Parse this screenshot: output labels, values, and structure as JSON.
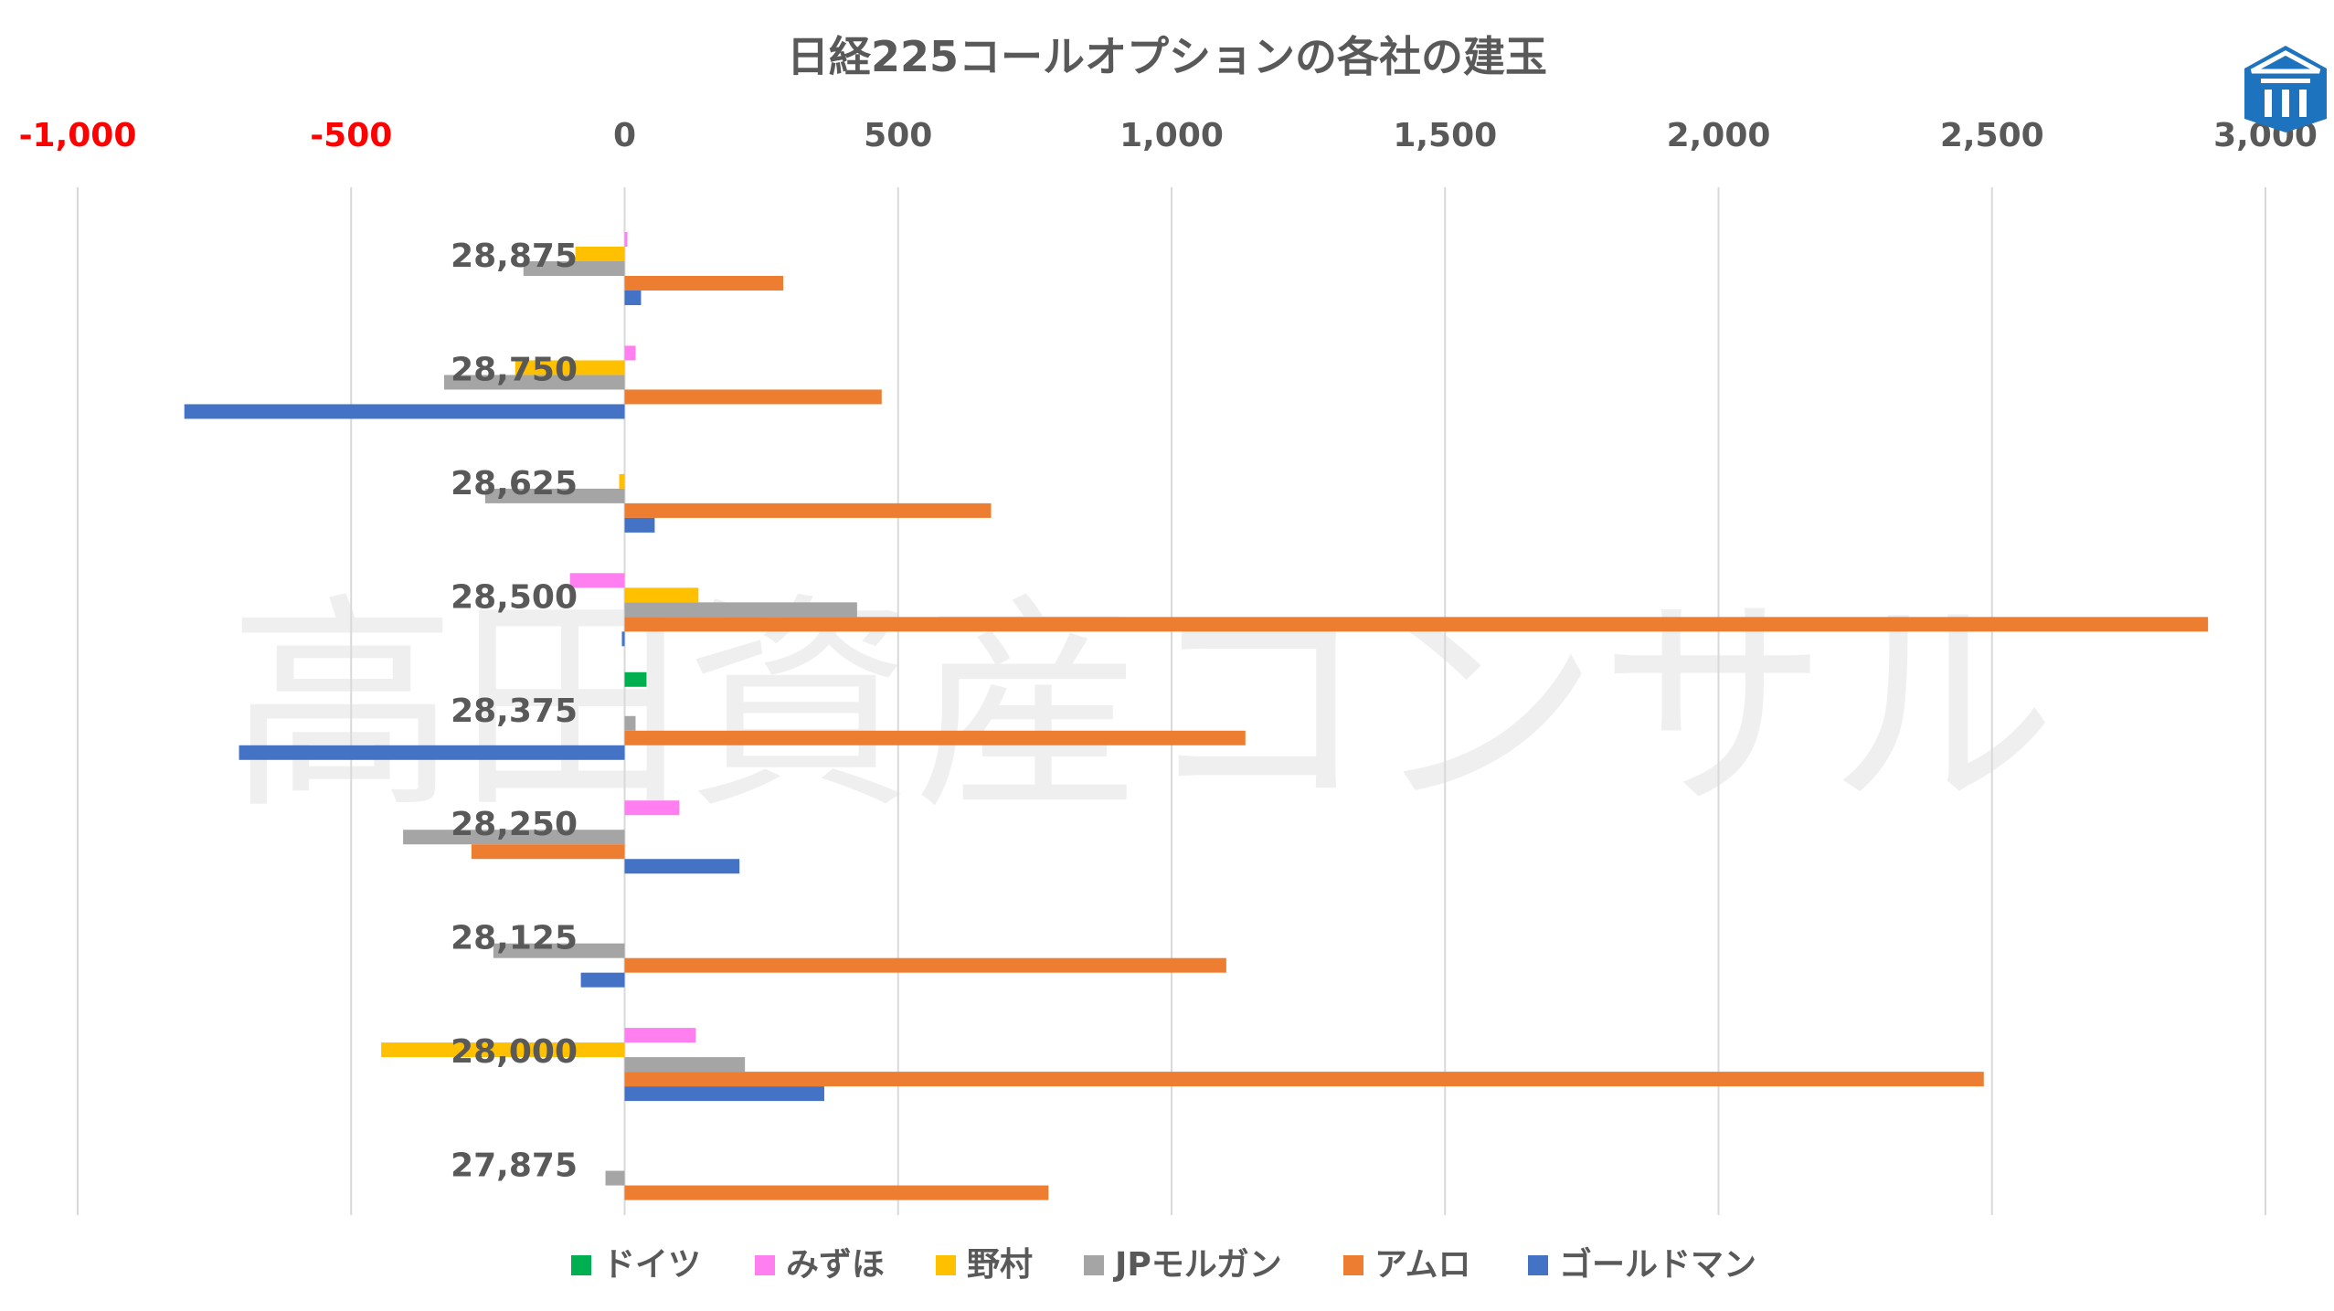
{
  "chart_data": {
    "type": "bar",
    "orientation": "horizontal",
    "title": "日経225コールオプションの各社の建玉",
    "categories": [
      "28,875",
      "28,750",
      "28,625",
      "28,500",
      "28,375",
      "28,250",
      "28,125",
      "28,000",
      "27,875"
    ],
    "series": [
      {
        "name": "ドイツ",
        "color": "#00b050",
        "values": [
          0,
          0,
          0,
          0,
          40,
          0,
          0,
          0,
          0
        ]
      },
      {
        "name": "みずほ",
        "color": "#ff7ff0",
        "values": [
          5,
          20,
          0,
          -100,
          0,
          100,
          0,
          130,
          0
        ]
      },
      {
        "name": "野村",
        "color": "#ffc000",
        "values": [
          -90,
          -200,
          -10,
          135,
          0,
          0,
          0,
          -445,
          0
        ]
      },
      {
        "name": "JPモルガン",
        "color": "#a5a5a5",
        "values": [
          -185,
          -330,
          -255,
          425,
          20,
          -405,
          -240,
          220,
          -35
        ]
      },
      {
        "name": "アムロ",
        "color": "#ed7d31",
        "values": [
          290,
          470,
          670,
          2895,
          1135,
          -280,
          1100,
          2485,
          775
        ]
      },
      {
        "name": "ゴールドマン",
        "color": "#4472c4",
        "values": [
          30,
          -805,
          55,
          -5,
          -705,
          210,
          -80,
          365,
          0
        ]
      }
    ],
    "xlim": [
      -1000,
      3000
    ],
    "xticks": [
      -1000,
      -500,
      0,
      500,
      1000,
      1500,
      2000,
      2500,
      3000
    ],
    "xtick_labels": [
      "-1,000",
      "-500",
      "0",
      "500",
      "1,000",
      "1,500",
      "2,000",
      "2,500",
      "3,000"
    ],
    "negative_tick_color": "#ff0000",
    "tick_color": "#595959",
    "grid": "vertical",
    "legend": "bottom"
  },
  "watermark": "高田資産コンサル",
  "logo": "logo-icon"
}
